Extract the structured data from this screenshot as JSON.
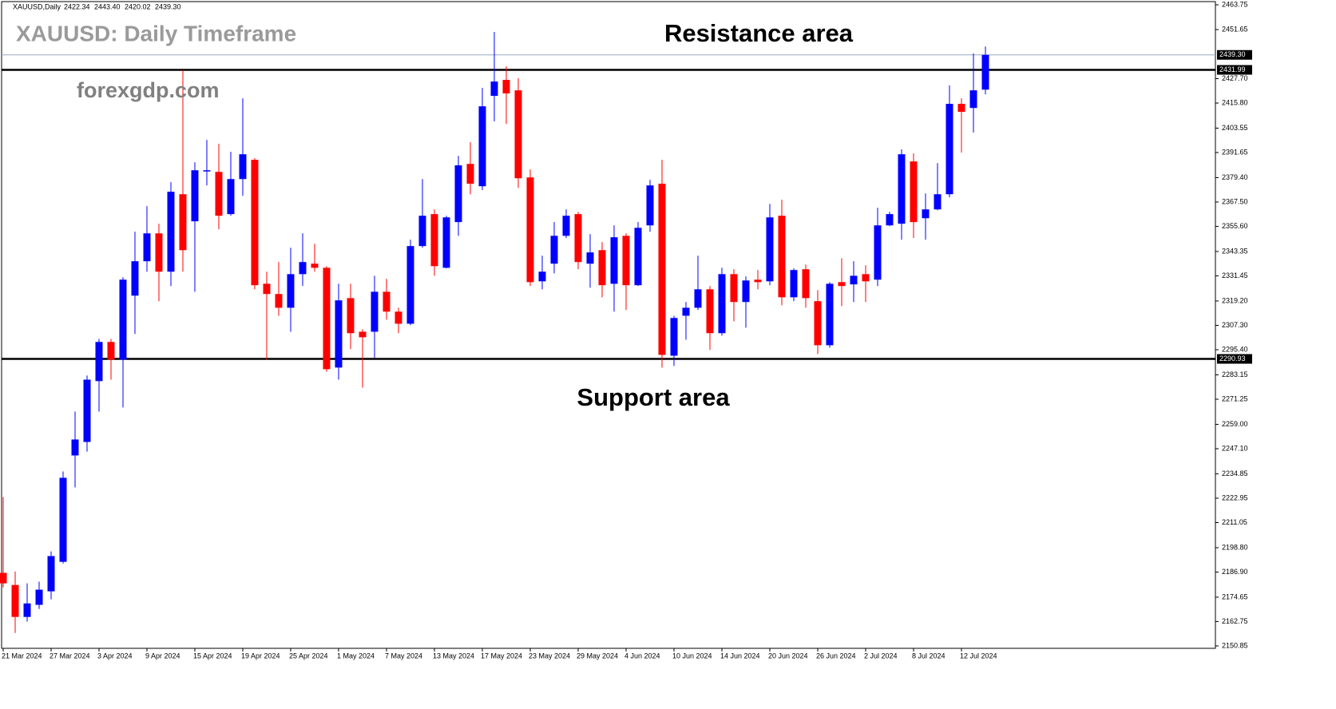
{
  "chart_data": {
    "type": "candlestick",
    "header": {
      "symbol": "XAUUSD,Daily",
      "values": [
        2422.34,
        2443.4,
        2420.02,
        2439.3
      ],
      "value_labels": [
        "2422.34",
        "2443.40",
        "2420.02",
        "2439.30"
      ]
    },
    "title": "XAUUSD: Daily Timeframe",
    "watermark": "forexgdp.com",
    "annotations": [
      "Resistance area",
      "Support area"
    ],
    "categories": [
      "21 Mar 2024",
      null,
      null,
      null,
      "27 Mar 2024",
      null,
      null,
      null,
      "3 Apr 2024",
      null,
      null,
      null,
      "9 Apr 2024",
      null,
      null,
      null,
      "15 Apr 2024",
      null,
      null,
      null,
      "19 Apr 2024",
      null,
      null,
      null,
      "25 Apr 2024",
      null,
      null,
      null,
      "1 May 2024",
      null,
      null,
      null,
      "7 May 2024",
      null,
      null,
      null,
      "13 May 2024",
      null,
      null,
      null,
      "17 May 2024",
      null,
      null,
      null,
      "23 May 2024",
      null,
      null,
      null,
      "29 May 2024",
      null,
      null,
      null,
      "4 Jun 2024",
      null,
      null,
      null,
      "10 Jun 2024",
      null,
      null,
      null,
      "14 Jun 2024",
      null,
      null,
      null,
      "20 Jun 2024",
      null,
      null,
      null,
      "26 Jun 2024",
      null,
      null,
      null,
      "2 Jul 2024",
      null,
      null,
      null,
      "8 Jul 2024",
      null,
      null,
      null,
      "12 Jul 2024",
      null,
      null
    ],
    "open": [
      2186.5,
      2180.6,
      2165.0,
      2170.9,
      2177.5,
      2191.9,
      2243.8,
      2250.4,
      2280.1,
      2299.2,
      2290.6,
      2321.8,
      2338.6,
      2352.2,
      2333.5,
      2371.3,
      2358.1,
      2382.6,
      2382.2,
      2361.6,
      2378.7,
      2388.1,
      2327.6,
      2322.6,
      2315.9,
      2332.3,
      2337.4,
      2335.4,
      2286.7,
      2320.6,
      2304.2,
      2304.2,
      2323.7,
      2314.0,
      2308.1,
      2346.0,
      2361.6,
      2335.4,
      2357.7,
      2386.1,
      2375.2,
      2419.3,
      2427.1,
      2422.0,
      2379.5,
      2328.8,
      2337.4,
      2351.0,
      2361.6,
      2337.4,
      2344.0,
      2327.6,
      2351.0,
      2326.9,
      2356.1,
      2376.4,
      2292.5,
      2312.0,
      2315.9,
      2324.9,
      2303.5,
      2332.3,
      2318.7,
      2329.6,
      2328.8,
      2360.8,
      2321.0,
      2334.7,
      2319.1,
      2297.6,
      2328.4,
      2327.3,
      2332.3,
      2329.6,
      2356.1,
      2356.9,
      2387.3,
      2359.6,
      2363.9,
      2371.3,
      2415.4,
      2413.4,
      2422.34
    ],
    "high": [
      2223.5,
      2187.2,
      2181.4,
      2182.2,
      2197.0,
      2236.0,
      2265.2,
      2282.8,
      2300.7,
      2300.7,
      2330.8,
      2353.0,
      2365.5,
      2356.9,
      2377.2,
      2431.8,
      2386.9,
      2397.8,
      2395.9,
      2392.0,
      2418.1,
      2388.9,
      2333.5,
      2338.2,
      2345.2,
      2352.2,
      2347.1,
      2336.2,
      2327.6,
      2327.6,
      2305.4,
      2331.5,
      2330.0,
      2315.9,
      2349.1,
      2378.7,
      2363.9,
      2360.8,
      2390.0,
      2396.7,
      2423.2,
      2450.5,
      2433.7,
      2427.9,
      2383.4,
      2341.3,
      2357.7,
      2363.9,
      2362.7,
      2351.8,
      2347.9,
      2356.1,
      2352.2,
      2357.7,
      2378.3,
      2388.1,
      2312.0,
      2318.7,
      2341.3,
      2326.5,
      2335.4,
      2334.7,
      2331.2,
      2334.3,
      2366.6,
      2368.6,
      2335.1,
      2337.0,
      2324.5,
      2328.4,
      2340.1,
      2338.6,
      2336.6,
      2364.7,
      2362.7,
      2393.2,
      2391.2,
      2371.7,
      2386.5,
      2424.4,
      2418.1,
      2440.0,
      2443.4
    ],
    "low": [
      2179.4,
      2157.2,
      2162.7,
      2168.9,
      2173.6,
      2191.1,
      2228.2,
      2245.7,
      2265.2,
      2280.8,
      2267.2,
      2303.1,
      2333.5,
      2319.1,
      2326.5,
      2333.5,
      2323.7,
      2375.6,
      2354.2,
      2360.8,
      2370.5,
      2324.9,
      2290.6,
      2312.0,
      2304.2,
      2326.5,
      2333.5,
      2284.7,
      2280.8,
      2295.7,
      2276.9,
      2291.4,
      2310.1,
      2303.5,
      2307.4,
      2345.2,
      2331.5,
      2335.1,
      2351.0,
      2371.3,
      2373.3,
      2406.8,
      2405.6,
      2374.4,
      2326.5,
      2324.9,
      2332.7,
      2349.9,
      2334.7,
      2325.7,
      2321.0,
      2314.0,
      2314.8,
      2326.5,
      2353.0,
      2286.7,
      2287.5,
      2300.3,
      2314.8,
      2295.3,
      2302.3,
      2309.3,
      2306.2,
      2324.9,
      2326.9,
      2317.1,
      2319.1,
      2315.9,
      2293.3,
      2296.4,
      2316.7,
      2318.7,
      2318.7,
      2326.5,
      2355.7,
      2349.1,
      2349.9,
      2349.1,
      2363.5,
      2369.8,
      2391.6,
      2401.4,
      2420.02
    ],
    "close": [
      2181.4,
      2165.0,
      2171.6,
      2178.3,
      2194.7,
      2232.9,
      2251.6,
      2280.8,
      2299.2,
      2290.6,
      2329.6,
      2338.6,
      2352.2,
      2333.5,
      2372.5,
      2344.0,
      2383.0,
      2383.0,
      2360.8,
      2378.7,
      2390.8,
      2326.9,
      2322.6,
      2315.9,
      2332.3,
      2338.2,
      2335.4,
      2285.9,
      2319.5,
      2303.5,
      2301.5,
      2323.7,
      2314.0,
      2308.1,
      2346.0,
      2360.8,
      2336.2,
      2360.0,
      2385.4,
      2376.4,
      2414.2,
      2426.3,
      2420.5,
      2379.1,
      2328.4,
      2333.5,
      2351.0,
      2360.8,
      2338.2,
      2342.9,
      2326.9,
      2350.3,
      2326.9,
      2354.9,
      2375.6,
      2292.9,
      2310.9,
      2315.9,
      2324.9,
      2303.5,
      2332.3,
      2318.7,
      2329.2,
      2328.4,
      2360.0,
      2321.0,
      2334.3,
      2320.6,
      2297.6,
      2327.6,
      2326.5,
      2331.5,
      2328.8,
      2356.1,
      2361.6,
      2390.8,
      2357.7,
      2363.9,
      2371.3,
      2415.4,
      2411.5,
      2422.0,
      2439.3
    ],
    "up_color": "#0000ff",
    "down_color": "#ff0000",
    "ylim": [
      2150.85,
      2463.75
    ],
    "yticks": [
      2463.75,
      2451.65,
      {
        "value": 2427.7,
        "label": "2427.70"
      },
      {
        "value": 2415.8,
        "label": "2415.80"
      },
      2403.55,
      2391.65,
      {
        "value": 2379.4,
        "label": "2379.40"
      },
      {
        "value": 2367.5,
        "label": "2367.50"
      },
      {
        "value": 2355.6,
        "label": "2355.60"
      },
      2343.35,
      2331.45,
      {
        "value": 2319.2,
        "label": "2319.20"
      },
      {
        "value": 2307.3,
        "label": "2307.30"
      },
      {
        "value": 2295.4,
        "label": "2295.40"
      },
      2283.15,
      2271.25,
      {
        "value": 2259,
        "label": "2259.00"
      },
      {
        "value": 2247.1,
        "label": "2247.10"
      },
      2234.85,
      2222.95,
      2211.05,
      {
        "value": 2198.8,
        "label": "2198.80"
      },
      {
        "value": 2186.9,
        "label": "2186.90"
      },
      2174.65,
      2162.75,
      2150.85
    ],
    "levels": [
      {
        "value": 2431.99,
        "color": "#000000"
      },
      {
        "value": 2290.93,
        "color": "#000000"
      }
    ],
    "last_price": {
      "value": 2439.3,
      "label": "2439.30"
    },
    "last_price_color": "#9aa7c4"
  }
}
